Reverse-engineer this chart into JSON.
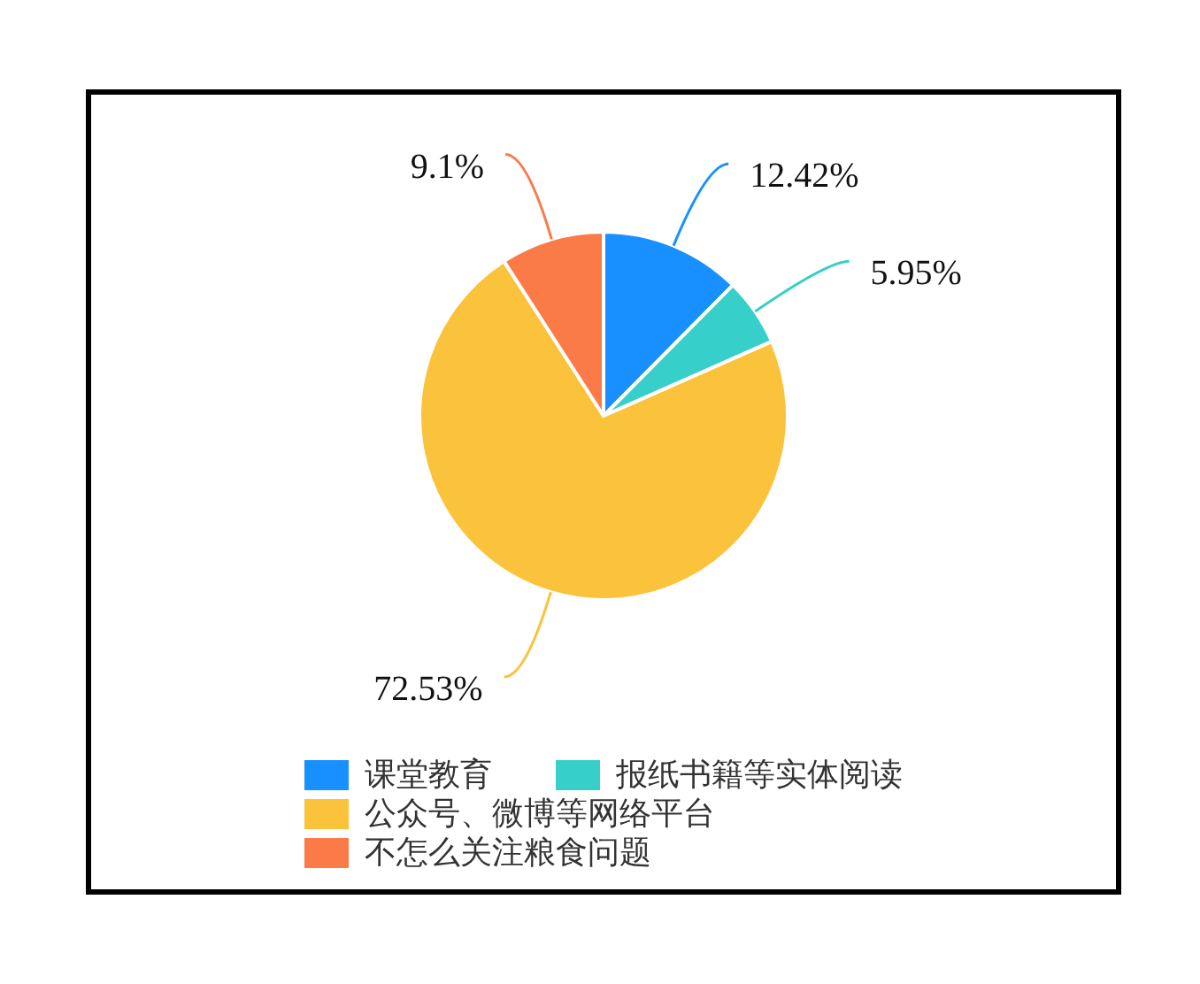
{
  "chart_data": {
    "type": "pie",
    "categories": [
      "课堂教育",
      "报纸书籍等实体阅读",
      "公众号、微博等网络平台",
      "不怎么关注粮食问题"
    ],
    "values": [
      12.42,
      5.95,
      72.53,
      9.1
    ],
    "colors": [
      "#1890ff",
      "#36cfc9",
      "#fbc23c",
      "#fa7a48"
    ],
    "value_labels": [
      "12.42%",
      "5.95%",
      "72.53%",
      "9.1%"
    ],
    "legend": "bottom"
  }
}
